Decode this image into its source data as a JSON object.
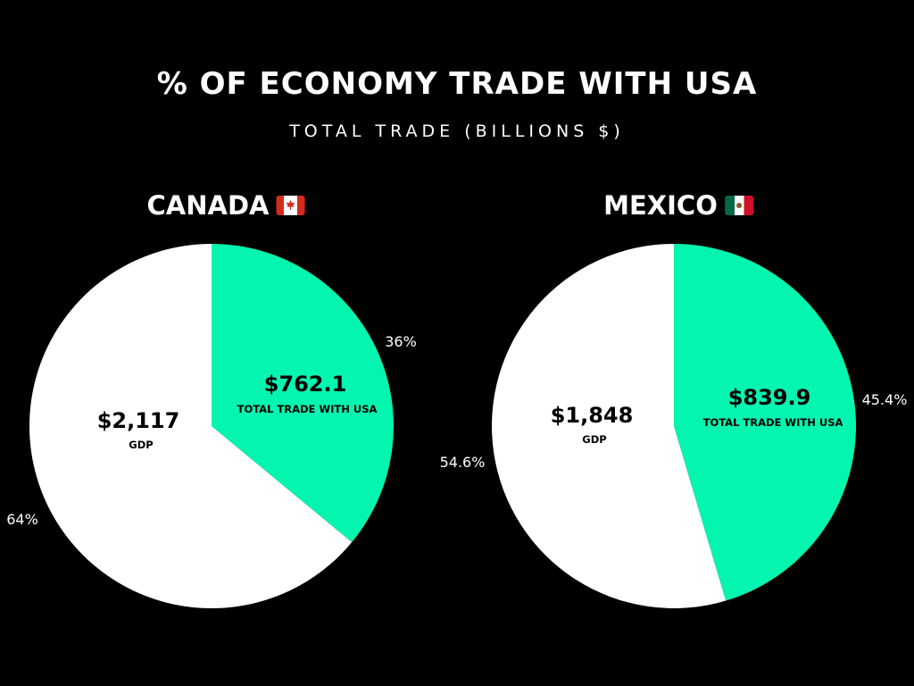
{
  "title": "% OF ECONOMY TRADE WITH USA",
  "subtitle": "TOTAL TRADE (BILLIONS $)",
  "colors": {
    "background": "#000000",
    "trade": "#04f5b0",
    "gdp": "#ffffff",
    "text": "#ffffff"
  },
  "chart_data": [
    {
      "type": "pie",
      "title": "CANADA",
      "flag_icon": "canada-flag-icon",
      "slices": [
        {
          "key": "trade",
          "value": 36,
          "percent_label": "36%",
          "amount": "$762.1",
          "description": "TOTAL TRADE  WITH USA",
          "color": "#04f5b0"
        },
        {
          "key": "gdp",
          "value": 64,
          "percent_label": "64%",
          "amount": "$2,117",
          "description": "GDP",
          "color": "#ffffff"
        }
      ]
    },
    {
      "type": "pie",
      "title": "MEXICO",
      "flag_icon": "mexico-flag-icon",
      "slices": [
        {
          "key": "trade",
          "value": 45.4,
          "percent_label": "45.4%",
          "amount": "$839.9",
          "description": "TOTAL TRADE  WITH USA",
          "color": "#04f5b0"
        },
        {
          "key": "gdp",
          "value": 54.6,
          "percent_label": "54.6%",
          "amount": "$1,848",
          "description": "GDP",
          "color": "#ffffff"
        }
      ]
    }
  ]
}
